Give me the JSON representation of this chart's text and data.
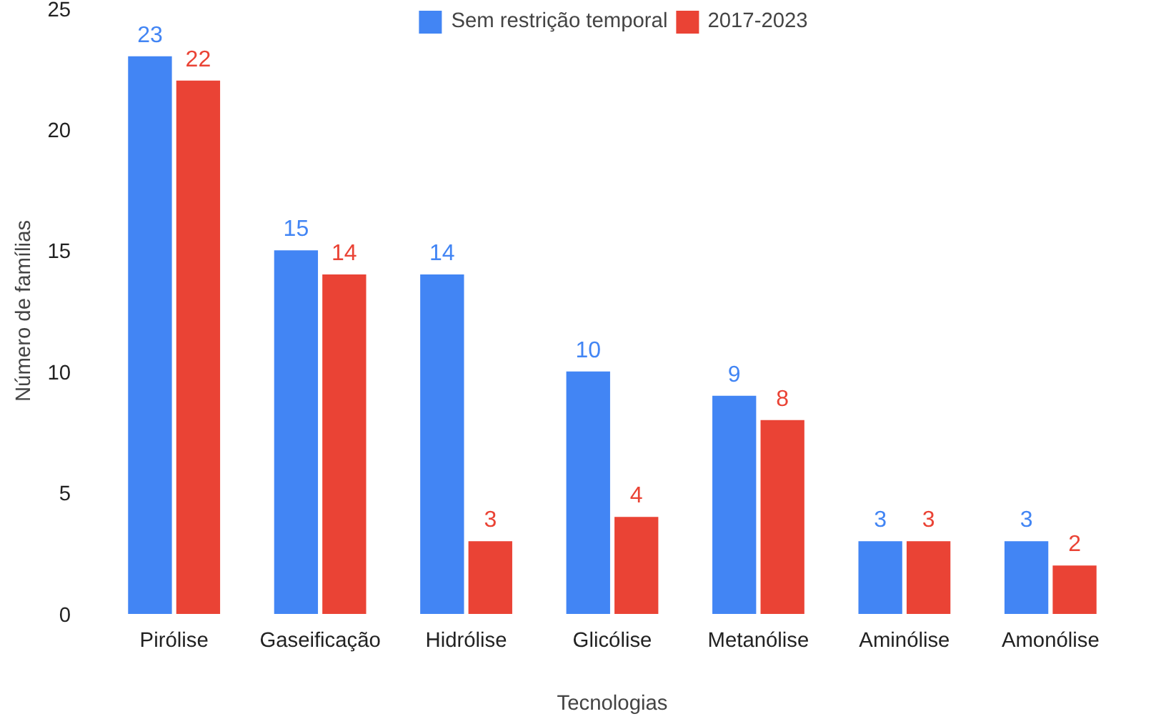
{
  "chart_data": {
    "type": "bar",
    "xlabel": "Tecnologias",
    "ylabel": "Número de famílias",
    "categories": [
      "Pirólise",
      "Gaseificação",
      "Hidrólise",
      "Glicólise",
      "Metanólise",
      "Aminólise",
      "Amonólise"
    ],
    "series": [
      {
        "name": "Sem restrição temporal",
        "color": "#4285f4",
        "values": [
          23,
          15,
          14,
          10,
          9,
          3,
          3
        ]
      },
      {
        "name": "2017-2023",
        "color": "#ea4335",
        "values": [
          22,
          14,
          3,
          4,
          8,
          3,
          2
        ]
      }
    ],
    "ylim": [
      0,
      25
    ],
    "yticks": [
      0,
      5,
      10,
      15,
      20,
      25
    ],
    "data_labels": true,
    "legend": "top",
    "grid": false
  }
}
